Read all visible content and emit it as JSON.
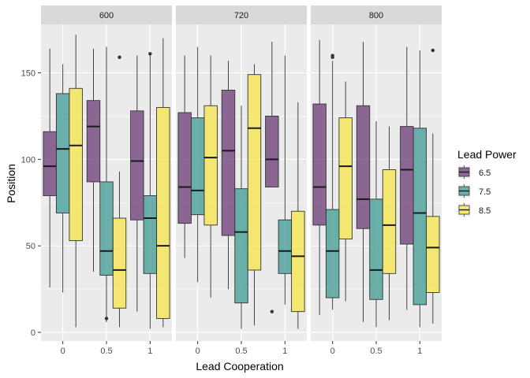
{
  "chart_data": {
    "type": "boxplot",
    "xlabel": "Lead Cooperation",
    "ylabel": "Position",
    "facet_labels": [
      "600",
      "720",
      "800"
    ],
    "categories": [
      "0",
      "0.5",
      "1"
    ],
    "ylim": [
      -5,
      178
    ],
    "yticks": [
      0,
      50,
      100,
      150
    ],
    "grid": true,
    "legend": {
      "title": "Lead Power",
      "position": "right",
      "entries": [
        {
          "label": "6.5",
          "color": "#6b3a76"
        },
        {
          "label": "7.5",
          "color": "#3d9a93"
        },
        {
          "label": "8.5",
          "color": "#f5e54a"
        }
      ]
    },
    "fill_opacity": 0.75,
    "panels": [
      {
        "facet": "600",
        "boxes": [
          {
            "category": "0",
            "series": "6.5",
            "min": 26,
            "q1": 79,
            "median": 96,
            "q3": 116,
            "max": 164,
            "outliers": []
          },
          {
            "category": "0",
            "series": "7.5",
            "min": 23,
            "q1": 69,
            "median": 106,
            "q3": 138,
            "max": 155,
            "outliers": []
          },
          {
            "category": "0",
            "series": "8.5",
            "min": 3,
            "q1": 53,
            "median": 108,
            "q3": 141,
            "max": 172,
            "outliers": []
          },
          {
            "category": "0.5",
            "series": "6.5",
            "min": 35,
            "q1": 87,
            "median": 119,
            "q3": 134,
            "max": 164,
            "outliers": []
          },
          {
            "category": "0.5",
            "series": "7.5",
            "min": 6,
            "q1": 33,
            "median": 47,
            "q3": 87,
            "max": 165,
            "outliers": [
              8
            ]
          },
          {
            "category": "0.5",
            "series": "8.5",
            "min": 3,
            "q1": 14,
            "median": 36,
            "q3": 66,
            "max": 93,
            "outliers": [
              159
            ]
          },
          {
            "category": "1",
            "series": "6.5",
            "min": 12,
            "q1": 65,
            "median": 99,
            "q3": 128,
            "max": 160,
            "outliers": []
          },
          {
            "category": "1",
            "series": "7.5",
            "min": 2,
            "q1": 34,
            "median": 66,
            "q3": 79,
            "max": 161,
            "outliers": [
              161
            ]
          },
          {
            "category": "1",
            "series": "8.5",
            "min": 3,
            "q1": 8,
            "median": 50,
            "q3": 130,
            "max": 170,
            "outliers": []
          }
        ]
      },
      {
        "facet": "720",
        "boxes": [
          {
            "category": "0",
            "series": "6.5",
            "min": 43,
            "q1": 63,
            "median": 84,
            "q3": 127,
            "max": 160,
            "outliers": []
          },
          {
            "category": "0",
            "series": "7.5",
            "min": 29,
            "q1": 68,
            "median": 82,
            "q3": 124,
            "max": 165,
            "outliers": []
          },
          {
            "category": "0",
            "series": "8.5",
            "min": 20,
            "q1": 62,
            "median": 101,
            "q3": 131,
            "max": 160,
            "outliers": []
          },
          {
            "category": "0.5",
            "series": "6.5",
            "min": 25,
            "q1": 56,
            "median": 105,
            "q3": 140,
            "max": 157,
            "outliers": []
          },
          {
            "category": "0.5",
            "series": "7.5",
            "min": 2,
            "q1": 17,
            "median": 58,
            "q3": 83,
            "max": 131,
            "outliers": []
          },
          {
            "category": "0.5",
            "series": "8.5",
            "min": 4,
            "q1": 36,
            "median": 118,
            "q3": 149,
            "max": 155,
            "outliers": []
          },
          {
            "category": "1",
            "series": "6.5",
            "min": 84,
            "q1": 84,
            "median": 100,
            "q3": 125,
            "max": 168,
            "outliers": [
              12
            ]
          },
          {
            "category": "1",
            "series": "7.5",
            "min": 16,
            "q1": 34,
            "median": 47,
            "q3": 65,
            "max": 160,
            "outliers": []
          },
          {
            "category": "1",
            "series": "8.5",
            "min": 2,
            "q1": 12,
            "median": 44,
            "q3": 70,
            "max": 133,
            "outliers": []
          }
        ]
      },
      {
        "facet": "800",
        "boxes": [
          {
            "category": "0",
            "series": "6.5",
            "min": 10,
            "q1": 62,
            "median": 84,
            "q3": 132,
            "max": 169,
            "outliers": []
          },
          {
            "category": "0",
            "series": "7.5",
            "min": 13,
            "q1": 20,
            "median": 47,
            "q3": 71,
            "max": 157,
            "outliers": [
              159,
              160
            ]
          },
          {
            "category": "0",
            "series": "8.5",
            "min": 18,
            "q1": 54,
            "median": 96,
            "q3": 124,
            "max": 145,
            "outliers": []
          },
          {
            "category": "0.5",
            "series": "6.5",
            "min": 6,
            "q1": 60,
            "median": 77,
            "q3": 131,
            "max": 168,
            "outliers": []
          },
          {
            "category": "0.5",
            "series": "7.5",
            "min": 3,
            "q1": 19,
            "median": 36,
            "q3": 77,
            "max": 122,
            "outliers": []
          },
          {
            "category": "0.5",
            "series": "8.5",
            "min": 7,
            "q1": 34,
            "median": 62,
            "q3": 94,
            "max": 119,
            "outliers": []
          },
          {
            "category": "1",
            "series": "6.5",
            "min": 13,
            "q1": 51,
            "median": 94,
            "q3": 119,
            "max": 165,
            "outliers": []
          },
          {
            "category": "1",
            "series": "7.5",
            "min": 3,
            "q1": 16,
            "median": 69,
            "q3": 118,
            "max": 163,
            "outliers": []
          },
          {
            "category": "1",
            "series": "8.5",
            "min": 5,
            "q1": 23,
            "median": 49,
            "q3": 67,
            "max": 115,
            "outliers": [
              163
            ]
          }
        ]
      }
    ]
  }
}
